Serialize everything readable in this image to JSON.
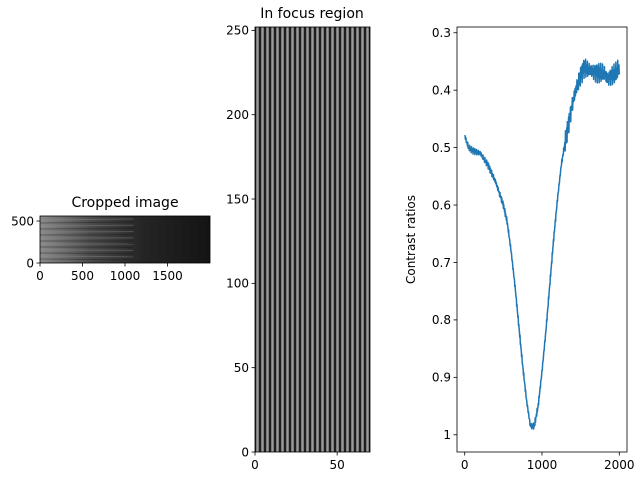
{
  "chart_data": [
    {
      "type": "image",
      "title": "Cropped image",
      "xlim": [
        0,
        2000
      ],
      "ylim": [
        560,
        0
      ],
      "xticks": [
        0,
        500,
        1000,
        1500
      ],
      "yticks": [
        0,
        500
      ],
      "xlabel": "",
      "ylabel": "",
      "image_width": 2000,
      "image_height": 560,
      "colormap": "gray",
      "description_value": "fringe pattern, bright on the left fading to dark on the right"
    },
    {
      "type": "image",
      "title": "In focus region",
      "xlim": [
        0,
        70
      ],
      "ylim": [
        252,
        0
      ],
      "xticks": [
        0,
        50
      ],
      "yticks": [
        0,
        50,
        100,
        150,
        200,
        250
      ],
      "xlabel": "",
      "ylabel": "",
      "image_width": 70,
      "image_height": 252,
      "colormap": "gray",
      "stripe_count": 23
    },
    {
      "type": "line",
      "title": "",
      "xlabel": "",
      "ylabel": "Contrast ratios",
      "xlim": [
        -100,
        2100
      ],
      "ylim": [
        0.29,
        1.03
      ],
      "xticks": [
        0,
        1000,
        2000
      ],
      "yticks": [
        0.3,
        0.4,
        0.5,
        0.6,
        0.7,
        0.8,
        0.9,
        1.0
      ],
      "color": "#1f77b4",
      "series": [
        {
          "x": [
            0,
            50,
            100,
            200,
            300,
            400,
            500,
            550,
            600,
            650,
            700,
            750,
            800,
            850,
            900,
            950,
            1000,
            1050,
            1100,
            1150,
            1200,
            1250,
            1300,
            1350,
            1400,
            1450,
            1500,
            1550,
            1600,
            1700,
            1800,
            1850,
            1900,
            1950,
            2000
          ],
          "y": [
            0.48,
            0.5,
            0.505,
            0.51,
            0.53,
            0.56,
            0.6,
            0.63,
            0.68,
            0.74,
            0.81,
            0.88,
            0.94,
            0.985,
            0.985,
            0.95,
            0.89,
            0.82,
            0.74,
            0.66,
            0.59,
            0.53,
            0.49,
            0.455,
            0.42,
            0.395,
            0.375,
            0.36,
            0.365,
            0.37,
            0.37,
            0.38,
            0.375,
            0.37,
            0.36
          ]
        }
      ]
    }
  ]
}
